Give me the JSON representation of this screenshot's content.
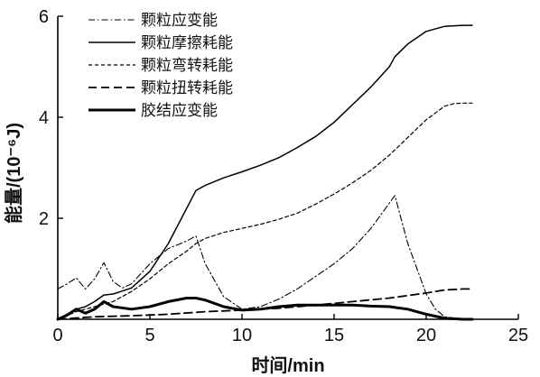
{
  "chart_data": {
    "type": "line",
    "xlabel": "时间/min",
    "ylabel": "能量/(10⁻⁶J)",
    "xlim": [
      0,
      25
    ],
    "ylim": [
      0,
      6
    ],
    "xticks": [
      0,
      5,
      10,
      15,
      20,
      25
    ],
    "yticks": [
      2,
      4,
      6
    ],
    "x_tick_labels": [
      "0",
      "5",
      "10",
      "15",
      "20",
      "25"
    ],
    "y_tick_labels": [
      "2",
      "4",
      "6"
    ],
    "grid": false,
    "legend_position": "top-left",
    "series": [
      {
        "name": "颗粒应变能",
        "style": "dash-dot",
        "color": "#000000",
        "x": [
          0,
          0.5,
          1.0,
          1.5,
          2.0,
          2.5,
          3.0,
          3.5,
          4.0,
          5.0,
          6.0,
          7.0,
          7.5,
          8.0,
          9.0,
          10.0,
          11.0,
          12.0,
          13.0,
          14.0,
          15.0,
          16.0,
          17.0,
          18.0,
          18.3,
          19.0,
          20.0,
          20.5,
          21.0,
          22.0,
          22.5
        ],
        "y": [
          0.6,
          0.7,
          0.82,
          0.6,
          0.8,
          1.12,
          0.75,
          0.62,
          0.7,
          1.1,
          1.4,
          1.55,
          1.65,
          1.1,
          0.45,
          0.2,
          0.25,
          0.4,
          0.6,
          0.85,
          1.1,
          1.4,
          1.8,
          2.3,
          2.45,
          1.5,
          0.5,
          0.2,
          0.05,
          0.0,
          0.0
        ]
      },
      {
        "name": "颗粒摩擦耗能",
        "style": "solid-thin",
        "color": "#000000",
        "x": [
          0,
          0.5,
          1.0,
          1.5,
          2.0,
          2.5,
          3.0,
          4.0,
          5.0,
          6.0,
          7.0,
          7.5,
          8.0,
          9.0,
          10.0,
          11.0,
          12.0,
          13.0,
          14.0,
          15.0,
          16.0,
          17.0,
          18.0,
          18.3,
          19.0,
          20.0,
          21.0,
          22.0,
          22.5
        ],
        "y": [
          0,
          0.1,
          0.2,
          0.25,
          0.35,
          0.48,
          0.5,
          0.62,
          0.95,
          1.5,
          2.2,
          2.55,
          2.65,
          2.8,
          2.92,
          3.05,
          3.2,
          3.4,
          3.62,
          3.9,
          4.25,
          4.6,
          5.0,
          5.2,
          5.45,
          5.7,
          5.8,
          5.82,
          5.82
        ]
      },
      {
        "name": "颗粒弯转耗能",
        "style": "short-dash",
        "color": "#000000",
        "x": [
          0,
          1.0,
          2.0,
          2.5,
          3.0,
          4.0,
          5.0,
          6.0,
          7.0,
          7.5,
          8.0,
          9.0,
          10.0,
          11.0,
          12.0,
          13.0,
          14.0,
          15.0,
          16.0,
          17.0,
          18.0,
          19.0,
          20.0,
          21.0,
          21.5,
          22.0,
          22.5
        ],
        "y": [
          0,
          0.15,
          0.25,
          0.3,
          0.35,
          0.55,
          0.8,
          1.1,
          1.35,
          1.5,
          1.6,
          1.72,
          1.8,
          1.88,
          1.98,
          2.1,
          2.28,
          2.48,
          2.7,
          2.95,
          3.25,
          3.6,
          3.95,
          4.22,
          4.27,
          4.28,
          4.28
        ]
      },
      {
        "name": "颗粒扭转耗能",
        "style": "long-dash",
        "color": "#000000",
        "x": [
          0,
          2.0,
          4.0,
          6.0,
          8.0,
          10.0,
          12.0,
          14.0,
          16.0,
          18.0,
          20.0,
          21.0,
          22.0,
          22.5
        ],
        "y": [
          0,
          0.05,
          0.07,
          0.1,
          0.15,
          0.18,
          0.22,
          0.28,
          0.35,
          0.42,
          0.52,
          0.58,
          0.6,
          0.6
        ]
      },
      {
        "name": "胶结应变能",
        "style": "solid-thick",
        "color": "#000000",
        "x": [
          0,
          0.5,
          1.0,
          1.5,
          2.0,
          2.5,
          3.0,
          4.0,
          5.0,
          6.0,
          7.0,
          7.5,
          8.0,
          9.0,
          10.0,
          11.0,
          12.0,
          13.0,
          14.0,
          15.0,
          16.0,
          17.0,
          18.0,
          19.0,
          20.0,
          21.0,
          22.0,
          22.5
        ],
        "y": [
          0,
          0.08,
          0.2,
          0.12,
          0.2,
          0.35,
          0.25,
          0.2,
          0.25,
          0.35,
          0.42,
          0.42,
          0.38,
          0.25,
          0.18,
          0.2,
          0.25,
          0.28,
          0.28,
          0.28,
          0.28,
          0.26,
          0.25,
          0.2,
          0.1,
          0.02,
          0.0,
          0.0
        ]
      }
    ]
  }
}
